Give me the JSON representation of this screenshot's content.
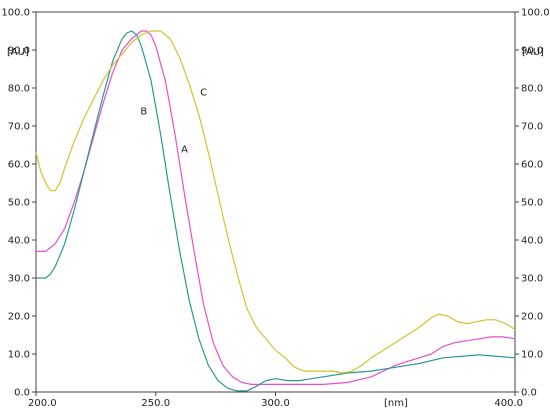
{
  "chart_data": {
    "type": "line",
    "title": "",
    "xlabel": "[nm]",
    "ylabel": "[AU]",
    "xlim": [
      200,
      400
    ],
    "ylim": [
      0,
      100
    ],
    "x_ticks": [
      "200.0",
      "250.0",
      "300.0",
      "400.0"
    ],
    "y_ticks": [
      "0.0",
      "10.0",
      "20.0",
      "30.0",
      "40.0",
      "50.0",
      "60.0",
      "70.0",
      "80.0",
      "90.0",
      "100.0"
    ],
    "grid": false,
    "series": [
      {
        "name": "A",
        "color": "#e84fd0",
        "label_at": [
          262,
          63
        ],
        "points": [
          [
            200,
            37
          ],
          [
            204,
            37
          ],
          [
            208,
            39
          ],
          [
            212,
            43
          ],
          [
            216,
            50
          ],
          [
            220,
            58
          ],
          [
            224,
            67
          ],
          [
            228,
            76
          ],
          [
            232,
            84
          ],
          [
            236,
            90
          ],
          [
            240,
            93
          ],
          [
            242,
            94
          ],
          [
            244,
            95
          ],
          [
            246,
            95
          ],
          [
            248,
            94
          ],
          [
            250,
            91
          ],
          [
            254,
            82
          ],
          [
            258,
            68
          ],
          [
            262,
            52
          ],
          [
            266,
            37
          ],
          [
            270,
            23
          ],
          [
            274,
            13
          ],
          [
            278,
            7
          ],
          [
            282,
            4
          ],
          [
            286,
            2.5
          ],
          [
            290,
            2
          ],
          [
            300,
            2
          ],
          [
            310,
            2
          ],
          [
            320,
            2
          ],
          [
            330,
            2.5
          ],
          [
            340,
            4
          ],
          [
            345,
            5.5
          ],
          [
            350,
            7
          ],
          [
            355,
            8
          ],
          [
            360,
            9
          ],
          [
            365,
            10
          ],
          [
            370,
            12
          ],
          [
            375,
            13
          ],
          [
            380,
            13.5
          ],
          [
            385,
            14
          ],
          [
            390,
            14.5
          ],
          [
            395,
            14.5
          ],
          [
            400,
            14
          ]
        ]
      },
      {
        "name": "B",
        "color": "#2a9a90",
        "label_at": [
          245,
          73
        ],
        "points": [
          [
            200,
            30
          ],
          [
            204,
            30
          ],
          [
            206,
            31
          ],
          [
            208,
            33
          ],
          [
            212,
            39
          ],
          [
            216,
            48
          ],
          [
            220,
            58
          ],
          [
            224,
            68
          ],
          [
            228,
            78
          ],
          [
            232,
            87
          ],
          [
            236,
            93
          ],
          [
            238,
            94.5
          ],
          [
            240,
            95
          ],
          [
            242,
            94
          ],
          [
            244,
            91
          ],
          [
            248,
            82
          ],
          [
            252,
            68
          ],
          [
            256,
            52
          ],
          [
            260,
            37
          ],
          [
            264,
            24
          ],
          [
            268,
            14
          ],
          [
            272,
            7
          ],
          [
            276,
            3
          ],
          [
            280,
            1
          ],
          [
            284,
            0.3
          ],
          [
            288,
            0.3
          ],
          [
            292,
            1.5
          ],
          [
            296,
            3
          ],
          [
            300,
            3.5
          ],
          [
            305,
            3
          ],
          [
            310,
            3
          ],
          [
            315,
            3.5
          ],
          [
            320,
            4
          ],
          [
            330,
            5
          ],
          [
            340,
            5.5
          ],
          [
            350,
            6.5
          ],
          [
            360,
            7.5
          ],
          [
            370,
            9
          ],
          [
            380,
            9.5
          ],
          [
            385,
            9.8
          ],
          [
            390,
            9.5
          ],
          [
            400,
            9
          ]
        ]
      },
      {
        "name": "C",
        "color": "#d4c22f",
        "label_at": [
          270,
          78
        ],
        "points": [
          [
            200,
            63
          ],
          [
            202,
            58
          ],
          [
            204,
            55
          ],
          [
            206,
            53
          ],
          [
            208,
            53
          ],
          [
            210,
            55
          ],
          [
            212,
            59
          ],
          [
            216,
            66
          ],
          [
            220,
            72
          ],
          [
            224,
            77
          ],
          [
            228,
            82
          ],
          [
            232,
            86
          ],
          [
            236,
            89
          ],
          [
            240,
            92
          ],
          [
            244,
            94
          ],
          [
            248,
            95
          ],
          [
            252,
            95
          ],
          [
            256,
            93
          ],
          [
            260,
            88
          ],
          [
            264,
            81
          ],
          [
            268,
            73
          ],
          [
            272,
            63
          ],
          [
            276,
            52
          ],
          [
            280,
            41
          ],
          [
            284,
            31
          ],
          [
            288,
            22
          ],
          [
            292,
            17
          ],
          [
            296,
            14
          ],
          [
            300,
            11
          ],
          [
            304,
            9
          ],
          [
            308,
            6.5
          ],
          [
            312,
            5.5
          ],
          [
            316,
            5.5
          ],
          [
            320,
            5.5
          ],
          [
            324,
            5.5
          ],
          [
            328,
            5
          ],
          [
            332,
            5.5
          ],
          [
            336,
            7
          ],
          [
            340,
            9
          ],
          [
            345,
            11
          ],
          [
            350,
            13
          ],
          [
            355,
            15
          ],
          [
            360,
            17
          ],
          [
            365,
            19.5
          ],
          [
            368,
            20.5
          ],
          [
            372,
            20
          ],
          [
            376,
            18.5
          ],
          [
            380,
            18
          ],
          [
            384,
            18.5
          ],
          [
            388,
            19
          ],
          [
            392,
            19
          ],
          [
            396,
            18
          ],
          [
            400,
            16.5
          ]
        ]
      }
    ]
  }
}
